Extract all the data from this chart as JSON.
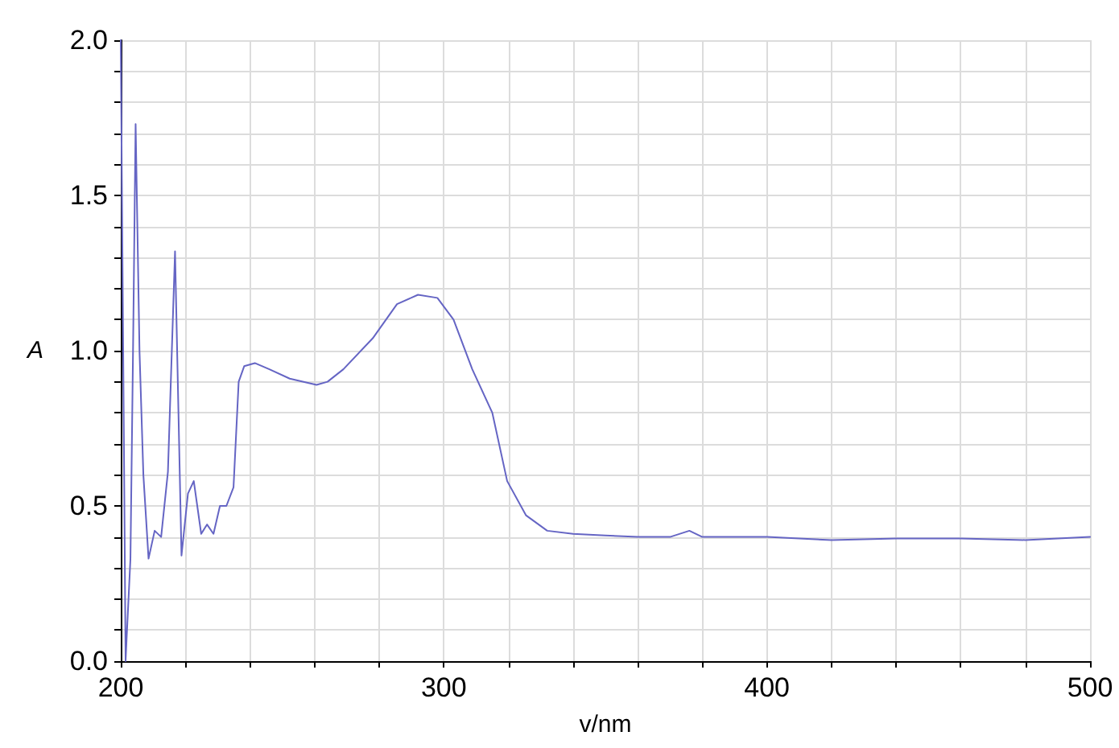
{
  "chart_data": {
    "type": "line",
    "xlabel": "v/nm",
    "ylabel": "A",
    "series": [
      {
        "color": "#6565c4",
        "x": [
          200,
          201.5,
          201.8,
          203,
          203.8,
          204.6,
          205.8,
          207,
          208.6,
          210.5,
          212.5,
          214.6,
          216.8,
          218.8,
          220.8,
          222.6,
          224.9,
          226.7,
          228.7,
          230.7,
          232.7,
          234.9,
          236.5,
          238.2,
          241.5,
          246,
          252.3,
          260.6,
          264,
          268.9,
          278,
          285.5,
          292,
          298,
          303,
          308.8,
          315,
          319.6,
          325.4,
          332,
          340,
          350,
          360,
          370,
          376,
          380,
          400,
          420,
          440,
          460,
          480,
          490,
          500
        ],
        "values": [
          2.0,
          0.0,
          0.07,
          0.33,
          1.0,
          1.73,
          1.0,
          0.6,
          0.33,
          0.42,
          0.4,
          0.61,
          1.32,
          0.34,
          0.54,
          0.58,
          0.41,
          0.44,
          0.41,
          0.5,
          0.5,
          0.56,
          0.9,
          0.95,
          0.96,
          0.94,
          0.91,
          0.89,
          0.9,
          0.94,
          1.04,
          1.15,
          1.18,
          1.17,
          1.1,
          0.94,
          0.8,
          0.58,
          0.47,
          0.42,
          0.41,
          0.405,
          0.4,
          0.4,
          0.42,
          0.4,
          0.4,
          0.39,
          0.395,
          0.395,
          0.39,
          0.395,
          0.4
        ]
      }
    ],
    "xlim": [
      200,
      500
    ],
    "ylim": [
      0,
      2
    ],
    "xticks": [
      200,
      {
        "value": 220,
        "label": null
      },
      {
        "value": 240,
        "label": null
      },
      {
        "value": 260,
        "label": null
      },
      {
        "value": 280,
        "label": null
      },
      300,
      {
        "value": 320,
        "label": null
      },
      {
        "value": 340,
        "label": null
      },
      {
        "value": 360,
        "label": null
      },
      {
        "value": 380,
        "label": null
      },
      400,
      {
        "value": 420,
        "label": null
      },
      {
        "value": 440,
        "label": null
      },
      {
        "value": 460,
        "label": null
      },
      {
        "value": 480,
        "label": null
      },
      500
    ],
    "yticks": [
      {
        "value": 0,
        "label": "0.0"
      },
      {
        "value": 0.1,
        "label": null
      },
      {
        "value": 0.2,
        "label": null
      },
      {
        "value": 0.3,
        "label": null
      },
      {
        "value": 0.4,
        "label": null
      },
      0.5,
      {
        "value": 0.6,
        "label": null
      },
      {
        "value": 0.7,
        "label": null
      },
      {
        "value": 0.8,
        "label": null
      },
      {
        "value": 0.9,
        "label": null
      },
      {
        "value": 1,
        "label": "1.0"
      },
      {
        "value": 1.1,
        "label": null
      },
      {
        "value": 1.2,
        "label": null
      },
      {
        "value": 1.3,
        "label": null
      },
      {
        "value": 1.4,
        "label": null
      },
      1.5,
      {
        "value": 1.6,
        "label": null
      },
      {
        "value": 1.7,
        "label": null
      },
      {
        "value": 1.8,
        "label": null
      },
      {
        "value": 1.9,
        "label": null
      },
      {
        "value": 2,
        "label": "2.0"
      }
    ],
    "grid": true,
    "marker": "none",
    "line_style": "solid"
  }
}
